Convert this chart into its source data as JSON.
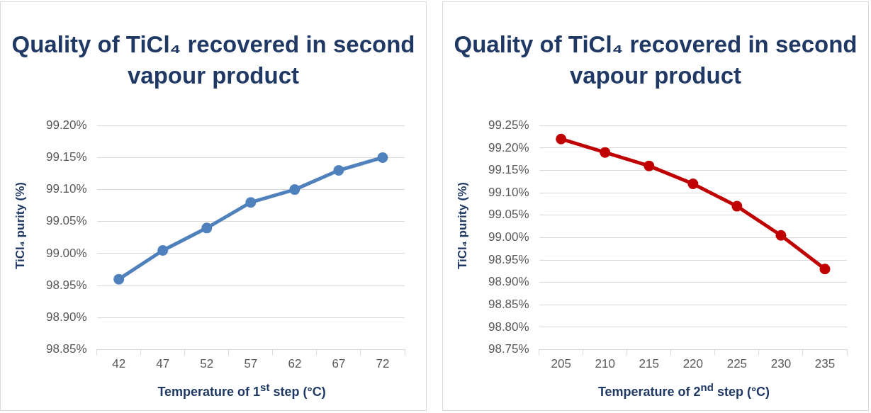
{
  "chart_data": [
    {
      "type": "line",
      "title": "Quality of TiCl₄ recovered in second vapour product",
      "xlabel": "Temperature of 1$^{st}$ step (°C)",
      "ylabel": "TiCl₄ purity (%)",
      "categories": [
        "42",
        "47",
        "52",
        "57",
        "62",
        "67",
        "72"
      ],
      "series": [
        {
          "color": "#4f81bd",
          "values": [
            98.96,
            99.005,
            99.04,
            99.08,
            99.1,
            99.13,
            99.15
          ]
        }
      ],
      "ylim": [
        98.85,
        99.2
      ],
      "yticks": [
        {
          "value": 98.85,
          "label": "98.85%"
        },
        {
          "value": 98.9,
          "label": "98.90%"
        },
        {
          "value": 98.95,
          "label": "98.95%"
        },
        {
          "value": 99.0,
          "label": "99.00%"
        },
        {
          "value": 99.05,
          "label": "99.05%"
        },
        {
          "value": 99.1,
          "label": "99.10%"
        },
        {
          "value": 99.15,
          "label": "99.15%"
        },
        {
          "value": 99.2,
          "label": "99.20%"
        }
      ],
      "grid": "y",
      "legend": false,
      "marker": "circle",
      "line_style": "solid"
    },
    {
      "type": "line",
      "title": "Quality of TiCl₄ recovered in second vapour product",
      "xlabel": "Temperature of 2$^{nd}$ step (°C)",
      "ylabel": "TiCl₄ purity (%)",
      "categories": [
        "205",
        "210",
        "215",
        "220",
        "225",
        "230",
        "235"
      ],
      "series": [
        {
          "color": "#c00000",
          "values": [
            99.22,
            99.19,
            99.16,
            99.12,
            99.07,
            99.005,
            98.93
          ]
        }
      ],
      "ylim": [
        98.75,
        99.25
      ],
      "yticks": [
        {
          "value": 98.75,
          "label": "98.75%"
        },
        {
          "value": 98.8,
          "label": "98.80%"
        },
        {
          "value": 98.85,
          "label": "98.85%"
        },
        {
          "value": 98.9,
          "label": "98.90%"
        },
        {
          "value": 98.95,
          "label": "98.95%"
        },
        {
          "value": 99.0,
          "label": "99.00%"
        },
        {
          "value": 99.05,
          "label": "99.05%"
        },
        {
          "value": 99.1,
          "label": "99.10%"
        },
        {
          "value": 99.15,
          "label": "99.15%"
        },
        {
          "value": 99.2,
          "label": "99.20%"
        },
        {
          "value": 99.25,
          "label": "99.25%"
        }
      ],
      "grid": "y",
      "legend": false,
      "marker": "circle",
      "line_style": "solid"
    }
  ]
}
